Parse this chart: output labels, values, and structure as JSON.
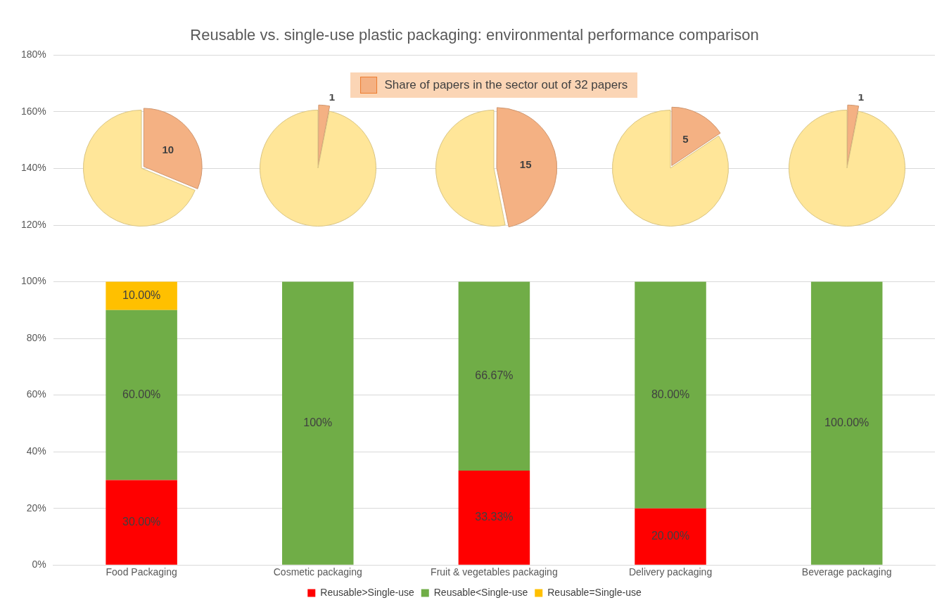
{
  "chart_data": [
    {
      "type": "bar",
      "title": "Reusable vs. single-use plastic packaging: environmental performance comparison",
      "categories": [
        "Food Packaging",
        "Cosmetic packaging",
        "Fruit & vegetables packaging",
        "Delivery packaging",
        "Beverage packaging"
      ],
      "stacked": true,
      "series": [
        {
          "name": "Reusable>Single-use",
          "color": "#ff0000",
          "values": [
            30,
            null,
            33.33,
            20,
            null
          ],
          "value_labels": [
            "30.00%",
            null,
            "33.33%",
            "20.00%",
            null
          ]
        },
        {
          "name": "Reusable<Single-use",
          "color": "#70ad47",
          "values": [
            60,
            100,
            66.67,
            80,
            100
          ],
          "value_labels": [
            "60.00%",
            "100%",
            "66.67%",
            "80.00%",
            "100.00%"
          ]
        },
        {
          "name": "Reusable=Single-use",
          "color": "#ffc000",
          "values": [
            10,
            null,
            null,
            null,
            null
          ],
          "value_labels": [
            "10.00%",
            null,
            null,
            null,
            null
          ]
        }
      ],
      "ylim": [
        0,
        180
      ],
      "yticks": [
        {
          "value": 0,
          "label": "0%"
        },
        {
          "value": 20,
          "label": "20%"
        },
        {
          "value": 40,
          "label": "40%"
        },
        {
          "value": 60,
          "label": "60%"
        },
        {
          "value": 80,
          "label": "80%"
        },
        {
          "value": 100,
          "label": "100%"
        },
        {
          "value": 120,
          "label": "120%"
        },
        {
          "value": 140,
          "label": "140%"
        },
        {
          "value": 160,
          "label": "160%"
        },
        {
          "value": 180,
          "label": "180%"
        }
      ],
      "grid": "y",
      "legend": "bottom"
    },
    {
      "type": "pie",
      "categories": [
        "Share of papers in the sector out of 32 papers",
        null
      ],
      "values": [
        10,
        22
      ],
      "colors": [
        "#f4b183",
        "#ffe699"
      ],
      "value_labels": [
        "10",
        null
      ],
      "legend": "top"
    },
    {
      "type": "pie",
      "categories": [
        null,
        null
      ],
      "values": [
        1,
        31
      ],
      "colors": [
        "#f4b183",
        "#ffe699"
      ],
      "value_labels": [
        "1",
        null
      ]
    },
    {
      "type": "pie",
      "categories": [
        null,
        null
      ],
      "values": [
        15,
        17
      ],
      "colors": [
        "#f4b183",
        "#ffe699"
      ],
      "value_labels": [
        "15",
        null
      ]
    },
    {
      "type": "pie",
      "categories": [
        null,
        null
      ],
      "values": [
        5,
        27
      ],
      "colors": [
        "#f4b183",
        "#ffe699"
      ],
      "value_labels": [
        "5",
        null
      ]
    },
    {
      "type": "pie",
      "categories": [
        null,
        null
      ],
      "values": [
        1,
        31
      ],
      "colors": [
        "#f4b183",
        "#ffe699"
      ],
      "value_labels": [
        "1",
        null
      ]
    }
  ]
}
